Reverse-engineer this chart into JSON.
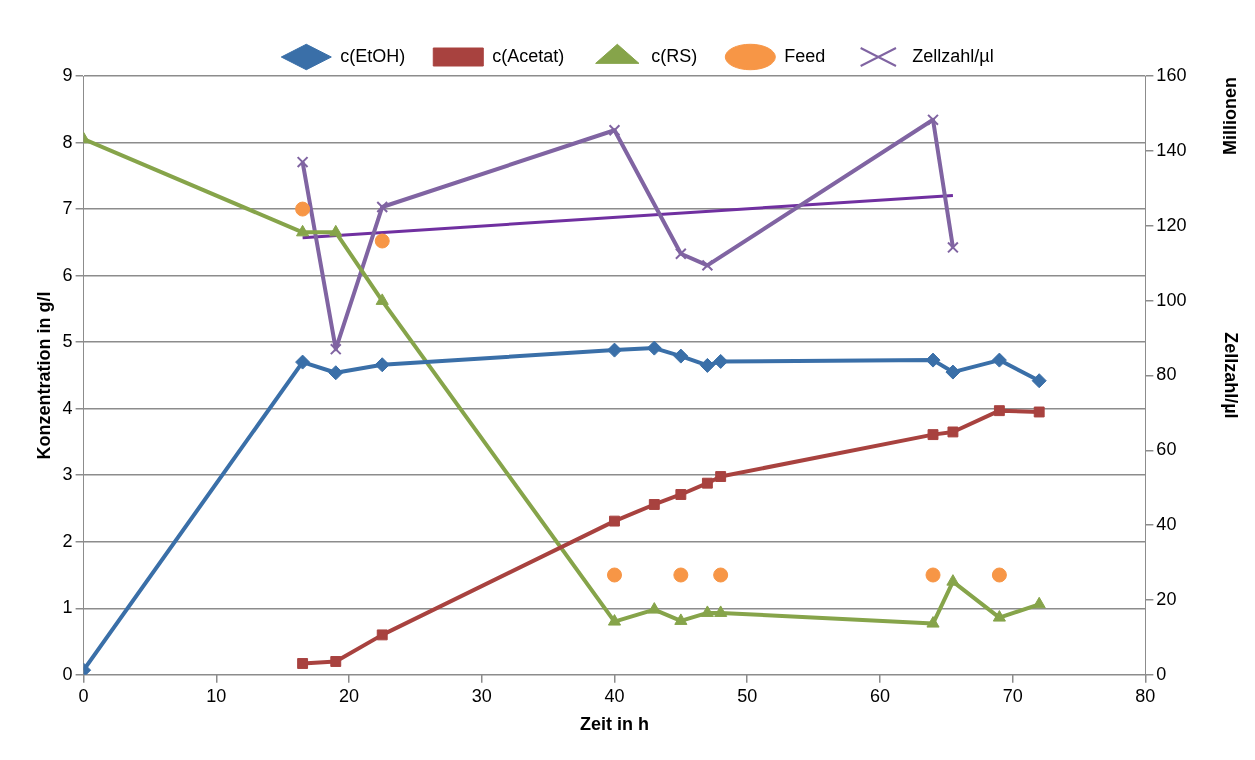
{
  "chart_data": {
    "type": "line",
    "xlabel": "Zeit in h",
    "ylabel": "Konzentration in g/l",
    "y2label": "Zellzahl/µl",
    "annotations": [
      "Millionen"
    ],
    "xlim": [
      0,
      80
    ],
    "xticks": [
      0,
      10,
      20,
      30,
      40,
      50,
      60,
      70,
      80
    ],
    "ylim": [
      0,
      9
    ],
    "yticks": [
      0,
      1,
      2,
      3,
      4,
      5,
      6,
      7,
      8,
      9
    ],
    "y2lim": [
      0,
      160
    ],
    "y2ticks": [
      0,
      20,
      40,
      60,
      80,
      100,
      120,
      140,
      160
    ],
    "grid": "y",
    "legend": "top",
    "series": [
      {
        "name": "c(EtOH)",
        "color": "#3a6fa8",
        "marker": "diamond",
        "x": [
          0,
          16.5,
          19,
          22.5,
          40,
          43,
          45,
          47,
          48,
          64,
          65.5,
          69,
          72
        ],
        "values": [
          0.07,
          4.7,
          4.54,
          4.66,
          4.88,
          4.91,
          4.79,
          4.65,
          4.71,
          4.73,
          4.55,
          4.73,
          4.42
        ]
      },
      {
        "name": "c(Acetat)",
        "color": "#a8423f",
        "marker": "square",
        "x": [
          16.5,
          19,
          22.5,
          40,
          43,
          45,
          47,
          48,
          64,
          65.5,
          69,
          72
        ],
        "values": [
          0.17,
          0.2,
          0.6,
          2.31,
          2.56,
          2.71,
          2.88,
          2.98,
          3.61,
          3.65,
          3.97,
          3.95
        ]
      },
      {
        "name": "c(RS)",
        "color": "#86a44a",
        "marker": "triangle",
        "x": [
          0,
          16.5,
          19,
          22.5,
          40,
          43,
          45,
          47,
          48,
          64,
          65.5,
          69,
          72
        ],
        "values": [
          8.05,
          6.65,
          6.65,
          5.62,
          0.8,
          0.98,
          0.81,
          0.93,
          0.93,
          0.77,
          1.4,
          0.86,
          1.06
        ]
      },
      {
        "name": "Feed",
        "type": "scatter",
        "color": "#f79646",
        "marker": "circle",
        "x": [
          16.5,
          22.5,
          40,
          45,
          48,
          64,
          69
        ],
        "values": [
          7.0,
          6.52,
          1.5,
          1.5,
          1.5,
          1.5,
          1.5
        ]
      },
      {
        "name": "Zellzahl/µl",
        "axis": "y2",
        "color": "#8064a2",
        "marker": "cross",
        "x": [
          16.5,
          19,
          22.5,
          40,
          45,
          47,
          64,
          65.5
        ],
        "values": [
          137,
          87,
          125,
          145.5,
          112.5,
          109.4,
          148.3,
          114.2
        ]
      },
      {
        "axis": "y2",
        "color": "#7030a0",
        "marker": "none",
        "x": [
          16.5,
          65.5
        ],
        "values": [
          116.8,
          128.1
        ]
      }
    ]
  }
}
